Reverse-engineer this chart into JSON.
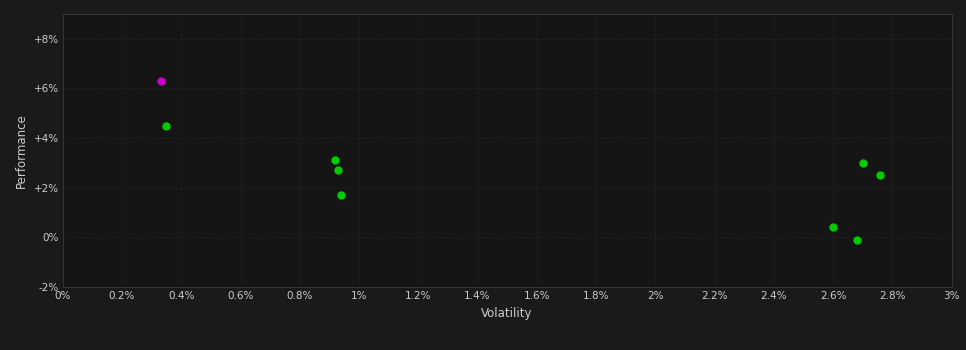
{
  "xlabel": "Volatility",
  "ylabel": "Performance",
  "background_color": "#1a1a1a",
  "plot_bg_color": "#151515",
  "grid_color": "#2d2d2d",
  "text_color": "#cccccc",
  "spine_color": "#3a3a3a",
  "xlim": [
    0.0,
    0.03
  ],
  "ylim": [
    -0.02,
    0.09
  ],
  "xticks": [
    0.0,
    0.002,
    0.004,
    0.006,
    0.008,
    0.01,
    0.012,
    0.014,
    0.016,
    0.018,
    0.02,
    0.022,
    0.024,
    0.026,
    0.028,
    0.03
  ],
  "yticks": [
    -0.02,
    0.0,
    0.02,
    0.04,
    0.06,
    0.08
  ],
  "xtick_labels": [
    "0%",
    "0.2%",
    "0.4%",
    "0.6%",
    "0.8%",
    "1%",
    "1.2%",
    "1.4%",
    "1.6%",
    "1.8%",
    "2%",
    "2.2%",
    "2.4%",
    "2.6%",
    "2.8%",
    "3%"
  ],
  "ytick_labels": [
    "-2%",
    "0%",
    "+2%",
    "+4%",
    "+6%",
    "+8%"
  ],
  "points_green": [
    [
      0.0035,
      0.045
    ],
    [
      0.0092,
      0.031
    ],
    [
      0.0093,
      0.027
    ],
    [
      0.0094,
      0.017
    ],
    [
      0.027,
      0.03
    ],
    [
      0.0276,
      0.025
    ],
    [
      0.026,
      0.004
    ],
    [
      0.0268,
      -0.001
    ]
  ],
  "points_magenta": [
    [
      0.0033,
      0.063
    ]
  ],
  "point_size": 25,
  "green_color": "#00cc00",
  "magenta_color": "#cc00cc"
}
